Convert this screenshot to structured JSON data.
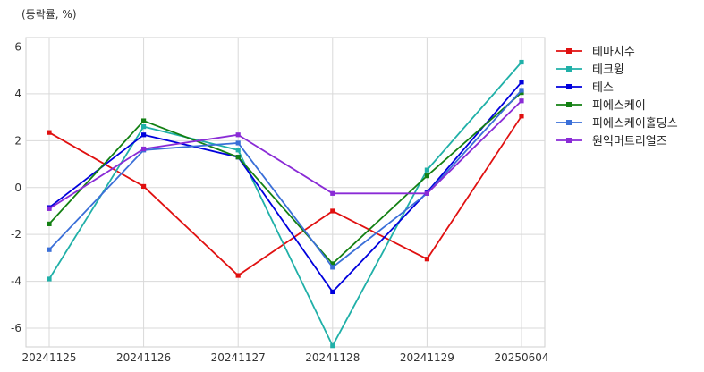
{
  "chart_data": {
    "type": "line",
    "unit_label": "(등락률, %)",
    "categories": [
      "20241125",
      "20241126",
      "20241127",
      "20241128",
      "20241129",
      "20250604"
    ],
    "ylim": [
      -6.8,
      6.4
    ],
    "yticks": [
      6,
      4,
      2,
      0,
      -2,
      -4,
      -6
    ],
    "grid": true,
    "legend_position": "right",
    "series": [
      {
        "name": "테마지수",
        "color": "#e01010",
        "values": [
          2.35,
          0.05,
          -3.75,
          -1.0,
          -3.05,
          3.05
        ]
      },
      {
        "name": "테크윙",
        "color": "#20b0a8",
        "values": [
          -3.9,
          2.6,
          1.6,
          -6.75,
          0.75,
          5.35
        ]
      },
      {
        "name": "테스",
        "color": "#0000dd",
        "values": [
          -0.85,
          2.25,
          1.3,
          -4.45,
          -0.2,
          4.5
        ]
      },
      {
        "name": "피에스케이",
        "color": "#138013",
        "values": [
          -1.55,
          2.85,
          1.3,
          -3.25,
          0.5,
          4.05
        ]
      },
      {
        "name": "피에스케이홀딩스",
        "color": "#3a6fd8",
        "values": [
          -2.65,
          1.6,
          1.9,
          -3.4,
          -0.25,
          4.15
        ]
      },
      {
        "name": "원익머트리얼즈",
        "color": "#8a2bd6",
        "values": [
          -0.9,
          1.65,
          2.25,
          -0.25,
          -0.25,
          3.7
        ]
      }
    ]
  }
}
